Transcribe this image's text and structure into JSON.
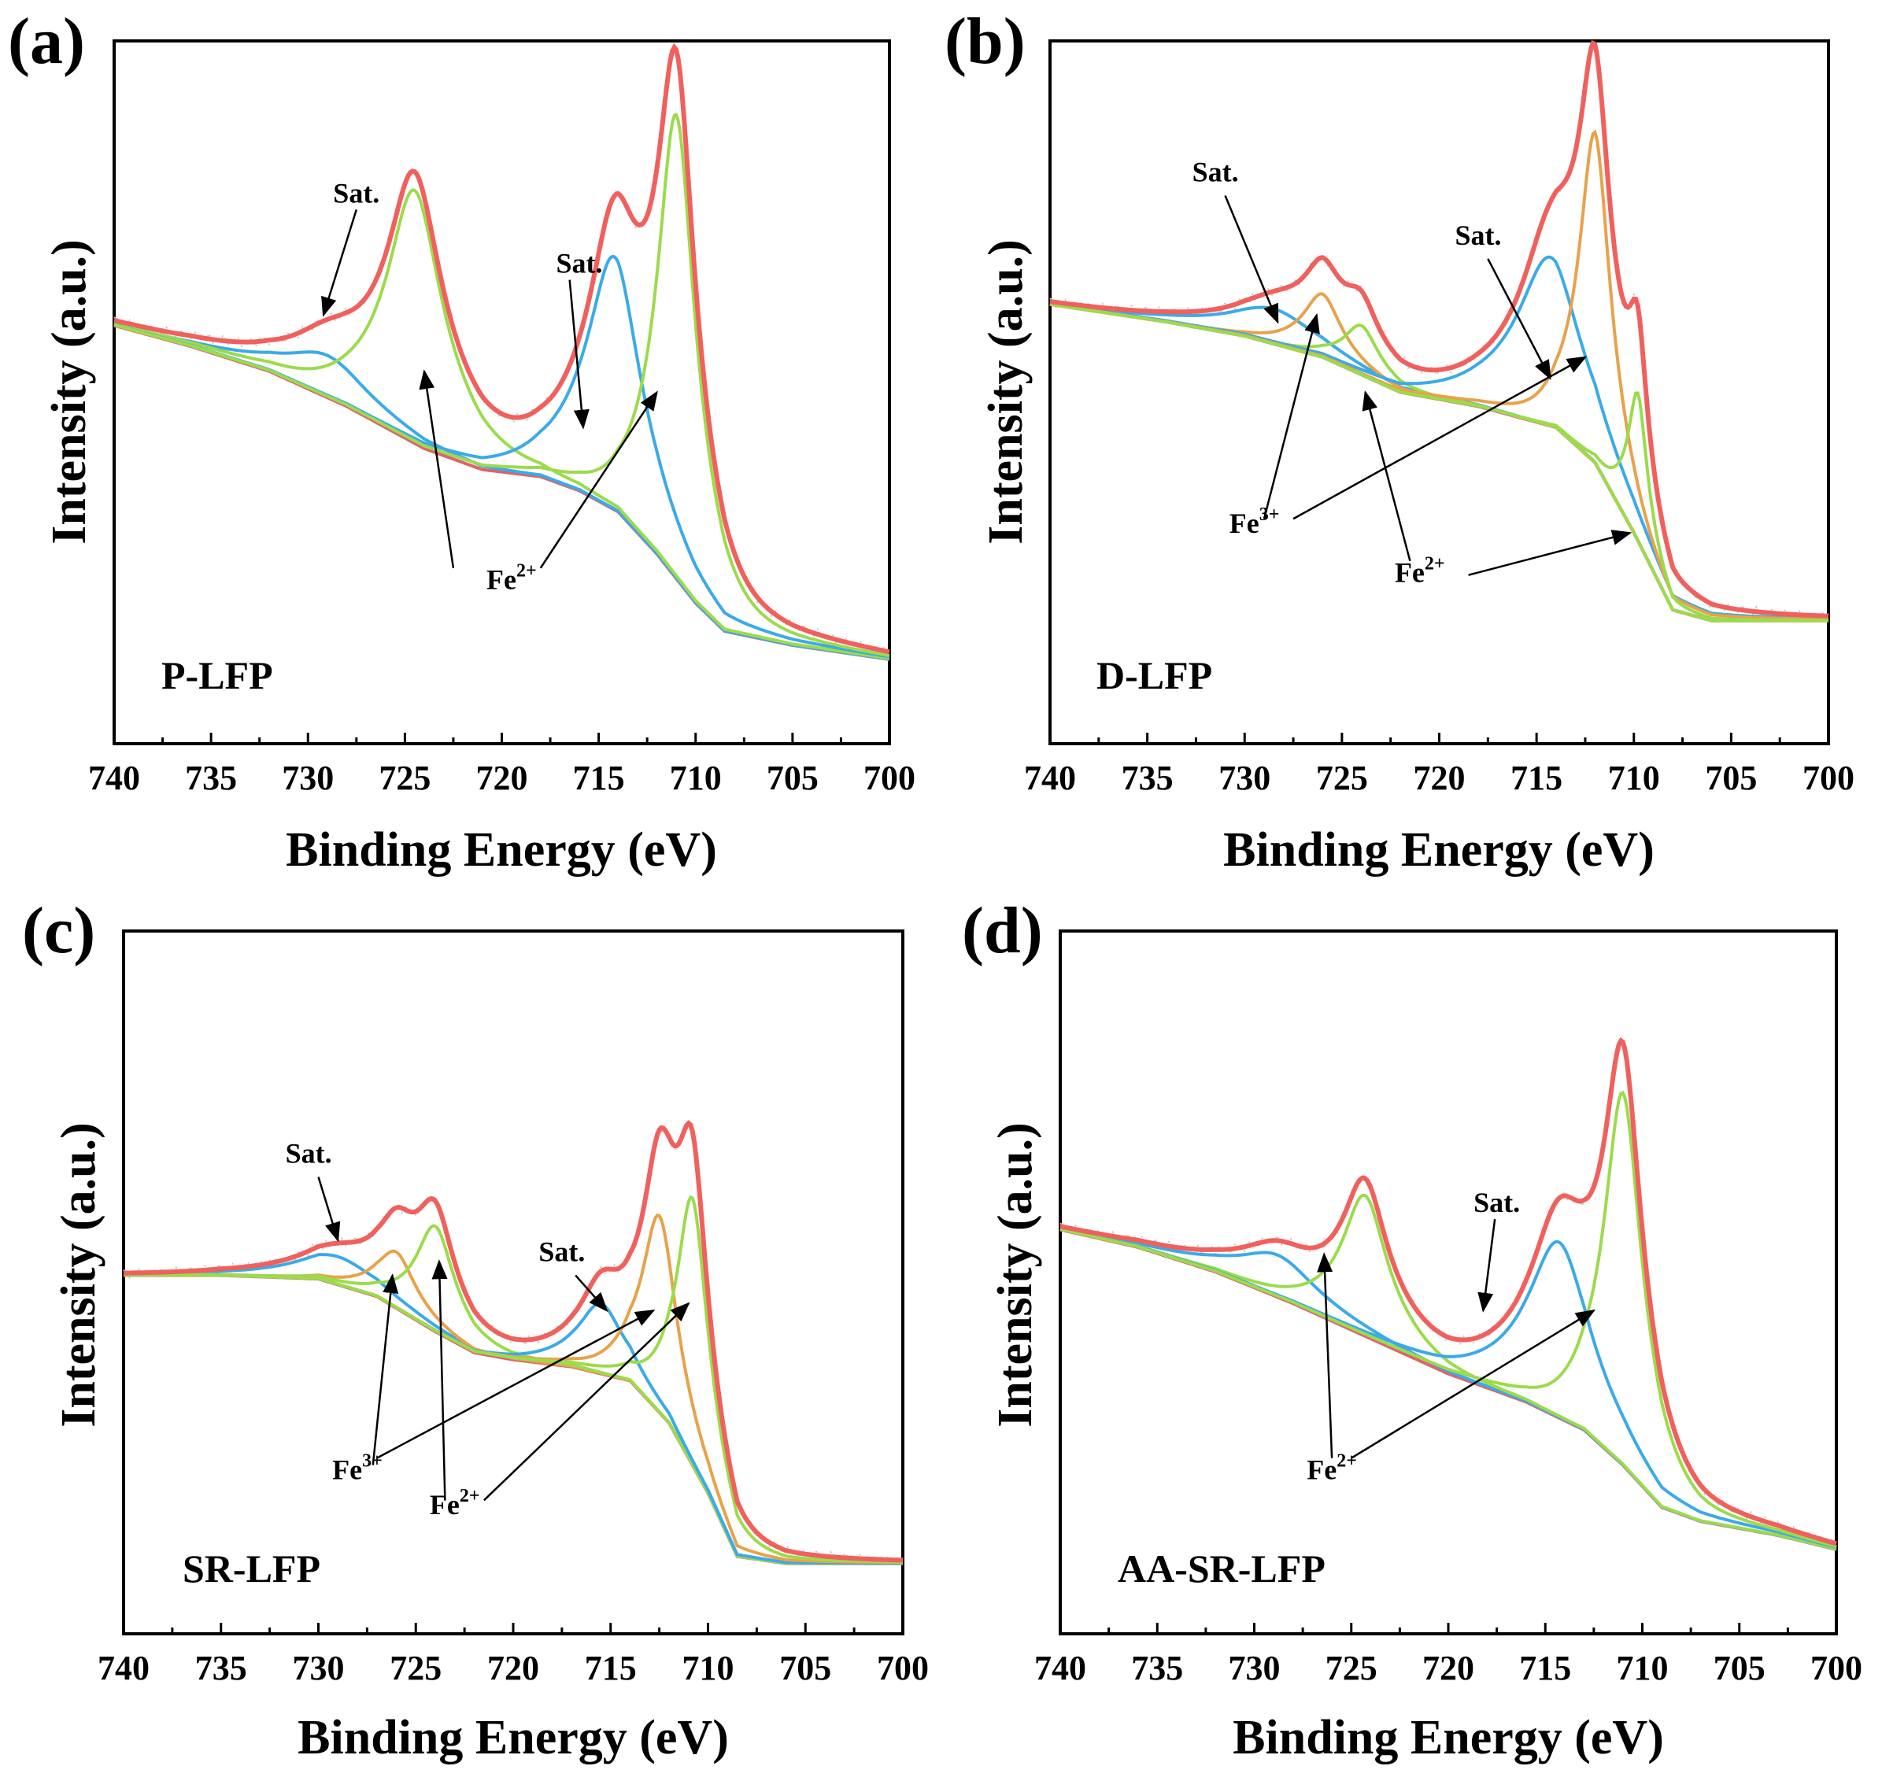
{
  "figure": {
    "xlabel": "Binding Energy (eV)",
    "ylabel": "Intensity (a.u.)",
    "x_ticks": [
      "740",
      "735",
      "730",
      "725",
      "720",
      "715",
      "710",
      "705",
      "700"
    ],
    "colors": {
      "envelope": "#F0605D",
      "blue": "#3BAAE8",
      "green": "#9BDB4C",
      "orange": "#E8A24A",
      "background": "#E0626A",
      "raw": "#C8C8C8",
      "axis": "#000000"
    }
  },
  "chart_data": [
    {
      "type": "line",
      "id": "a",
      "panel_label": "(a)",
      "sample": "P-LFP",
      "xlabel": "Binding Energy (eV)",
      "ylabel": "Intensity (a.u.)",
      "xlim": [
        740,
        700
      ],
      "ylim": [
        0,
        1
      ],
      "baseline": [
        [
          740,
          0.595
        ],
        [
          736,
          0.565
        ],
        [
          732,
          0.53
        ],
        [
          728,
          0.48
        ],
        [
          724,
          0.42
        ],
        [
          721,
          0.39
        ],
        [
          718,
          0.38
        ],
        [
          716,
          0.36
        ],
        [
          714,
          0.33
        ],
        [
          712,
          0.27
        ],
        [
          710,
          0.2
        ],
        [
          708.5,
          0.16
        ],
        [
          705,
          0.14
        ],
        [
          700,
          0.12
        ]
      ],
      "peaks": [
        {
          "series": "blue",
          "center": 729.0,
          "height": 0.06,
          "width": 2.4,
          "label": "Sat."
        },
        {
          "series": "green",
          "center": 724.5,
          "height": 0.36,
          "width": 1.6,
          "label": "Fe2+"
        },
        {
          "series": "blue",
          "center": 714.2,
          "height": 0.36,
          "width": 1.6,
          "label": "Sat."
        },
        {
          "series": "green",
          "center": 711.0,
          "height": 0.66,
          "width": 1.1,
          "label": "Fe2+"
        }
      ],
      "annotations": [
        {
          "text": "Sat.",
          "sup": "",
          "x": 727.5,
          "y": 0.77
        },
        {
          "text": "Sat.",
          "sup": "",
          "x": 716.0,
          "y": 0.67
        },
        {
          "text": "Fe",
          "sup": "2+",
          "x": 719.5,
          "y": 0.22
        }
      ]
    },
    {
      "type": "line",
      "id": "b",
      "panel_label": "(b)",
      "sample": "D-LFP",
      "xlabel": "Binding Energy (eV)",
      "ylabel": "Intensity (a.u.)",
      "xlim": [
        740,
        700
      ],
      "ylim": [
        0,
        1
      ],
      "baseline": [
        [
          740,
          0.625
        ],
        [
          734,
          0.6
        ],
        [
          730,
          0.58
        ],
        [
          726,
          0.55
        ],
        [
          722,
          0.5
        ],
        [
          718,
          0.48
        ],
        [
          714,
          0.45
        ],
        [
          712,
          0.4
        ],
        [
          710,
          0.3
        ],
        [
          708,
          0.19
        ],
        [
          706,
          0.175
        ],
        [
          700,
          0.175
        ]
      ],
      "peaks": [
        {
          "series": "blue",
          "center": 728.5,
          "height": 0.05,
          "width": 2.5,
          "label": "Sat."
        },
        {
          "series": "orange",
          "center": 726.0,
          "height": 0.09,
          "width": 1.1,
          "label": "Fe3+"
        },
        {
          "series": "green",
          "center": 724.0,
          "height": 0.07,
          "width": 1.0,
          "label": "Fe2+"
        },
        {
          "series": "blue",
          "center": 714.3,
          "height": 0.24,
          "width": 1.9,
          "label": "Sat."
        },
        {
          "series": "orange",
          "center": 712.0,
          "height": 0.47,
          "width": 0.9,
          "label": "Fe3+"
        },
        {
          "series": "green",
          "center": 709.8,
          "height": 0.21,
          "width": 0.55,
          "label": "Fe2+"
        }
      ],
      "annotations": [
        {
          "text": "Sat.",
          "sup": "",
          "x": 731.5,
          "y": 0.8
        },
        {
          "text": "Sat.",
          "sup": "",
          "x": 718.0,
          "y": 0.71
        },
        {
          "text": "Fe",
          "sup": "3+",
          "x": 729.5,
          "y": 0.3
        },
        {
          "text": "Fe",
          "sup": "2+",
          "x": 721.0,
          "y": 0.23
        }
      ]
    },
    {
      "type": "line",
      "id": "c",
      "panel_label": "(c)",
      "sample": "SR-LFP",
      "xlabel": "Binding Energy (eV)",
      "ylabel": "Intensity (a.u.)",
      "xlim": [
        740,
        700
      ],
      "ylim": [
        0,
        1
      ],
      "baseline": [
        [
          740,
          0.51
        ],
        [
          735,
          0.51
        ],
        [
          730,
          0.505
        ],
        [
          727,
          0.48
        ],
        [
          724,
          0.43
        ],
        [
          722,
          0.4
        ],
        [
          720,
          0.39
        ],
        [
          717,
          0.38
        ],
        [
          714,
          0.36
        ],
        [
          712,
          0.3
        ],
        [
          710,
          0.2
        ],
        [
          708.5,
          0.11
        ],
        [
          706,
          0.1
        ],
        [
          700,
          0.1
        ]
      ],
      "peaks": [
        {
          "series": "blue",
          "center": 729.0,
          "height": 0.04,
          "width": 2.3,
          "label": "Sat."
        },
        {
          "series": "orange",
          "center": 726.0,
          "height": 0.08,
          "width": 1.1,
          "label": "Fe3+"
        },
        {
          "series": "green",
          "center": 724.0,
          "height": 0.15,
          "width": 1.1,
          "label": "Fe2+"
        },
        {
          "series": "blue",
          "center": 715.5,
          "height": 0.1,
          "width": 1.3,
          "label": "Sat."
        },
        {
          "series": "orange",
          "center": 712.5,
          "height": 0.28,
          "width": 1.0,
          "label": "Fe3+"
        },
        {
          "series": "green",
          "center": 710.8,
          "height": 0.38,
          "width": 0.9,
          "label": "Fe2+"
        }
      ],
      "annotations": [
        {
          "text": "Sat.",
          "sup": "",
          "x": 730.5,
          "y": 0.67
        },
        {
          "text": "Sat.",
          "sup": "",
          "x": 717.5,
          "y": 0.53
        },
        {
          "text": "Fe",
          "sup": "3+",
          "x": 728.0,
          "y": 0.22
        },
        {
          "text": "Fe",
          "sup": "2+",
          "x": 723.0,
          "y": 0.17
        }
      ]
    },
    {
      "type": "line",
      "id": "d",
      "panel_label": "(d)",
      "sample": "AA-SR-LFP",
      "xlabel": "Binding Energy (eV)",
      "ylabel": "Intensity (a.u.)",
      "xlim": [
        740,
        700
      ],
      "ylim": [
        0,
        1
      ],
      "baseline": [
        [
          740,
          0.575
        ],
        [
          736,
          0.55
        ],
        [
          732,
          0.515
        ],
        [
          728,
          0.47
        ],
        [
          724,
          0.42
        ],
        [
          720,
          0.37
        ],
        [
          716,
          0.33
        ],
        [
          713,
          0.29
        ],
        [
          711,
          0.24
        ],
        [
          709,
          0.18
        ],
        [
          707,
          0.16
        ],
        [
          703,
          0.14
        ],
        [
          700,
          0.12
        ]
      ],
      "peaks": [
        {
          "series": "blue",
          "center": 728.8,
          "height": 0.06,
          "width": 2.3,
          "label": "Sat."
        },
        {
          "series": "green",
          "center": 724.3,
          "height": 0.2,
          "width": 1.3,
          "label": "Fe2+"
        },
        {
          "series": "blue",
          "center": 714.3,
          "height": 0.25,
          "width": 1.8,
          "label": "Sat."
        },
        {
          "series": "green",
          "center": 711.0,
          "height": 0.53,
          "width": 1.1,
          "label": "Fe2+"
        }
      ],
      "annotations": [
        {
          "text": "Sat.",
          "sup": "",
          "x": 717.5,
          "y": 0.6
        },
        {
          "text": "Fe",
          "sup": "2+",
          "x": 726.0,
          "y": 0.22
        }
      ]
    }
  ]
}
